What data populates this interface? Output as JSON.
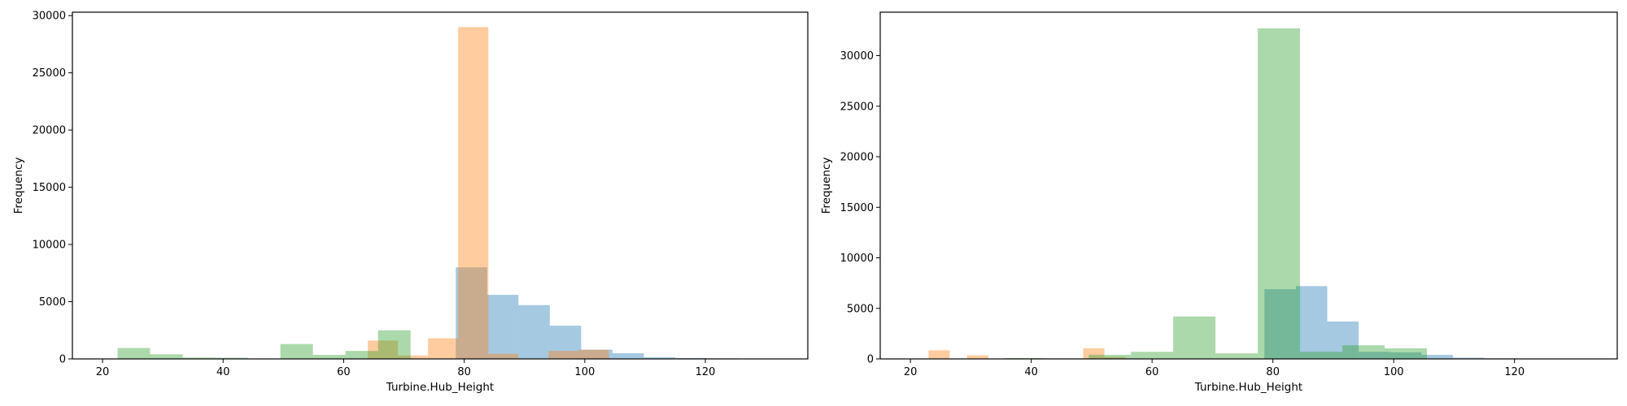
{
  "colors": {
    "series_a": "#1f77b4",
    "series_b": "#ff7f0e",
    "series_c": "#2ca02c",
    "alpha": 0.4
  },
  "chart_data": [
    {
      "type": "histogram",
      "xlabel": "Turbine.Hub_Height",
      "ylabel": "Frequency",
      "xlim": [
        15,
        137
      ],
      "ylim": [
        0,
        30300
      ],
      "xticks": [
        20,
        40,
        60,
        80,
        100,
        120
      ],
      "yticks": [
        0,
        5000,
        10000,
        15000,
        20000,
        25000,
        30000
      ],
      "series": [
        {
          "bins": [
            [
              78.6,
              83.8,
              8000
            ],
            [
              83.8,
              89.0,
              5600
            ],
            [
              89.0,
              94.2,
              4700
            ],
            [
              94.2,
              99.4,
              2900
            ],
            [
              99.4,
              104.6,
              800
            ],
            [
              104.6,
              109.8,
              500
            ],
            [
              109.8,
              115.0,
              150
            ],
            [
              115.0,
              120.2,
              80
            ],
            [
              120.2,
              125.4,
              50
            ],
            [
              125.4,
              130.6,
              30
            ]
          ]
        },
        {
          "bins": [
            [
              64.0,
              69.0,
              1600
            ],
            [
              69.0,
              74.0,
              300
            ],
            [
              74.0,
              79.0,
              1800
            ],
            [
              79.0,
              84.0,
              29000
            ],
            [
              84.0,
              89.0,
              450
            ],
            [
              94.0,
              99.0,
              700
            ],
            [
              99.0,
              104.0,
              800
            ]
          ]
        },
        {
          "bins": [
            [
              22.5,
              27.9,
              950
            ],
            [
              27.9,
              33.3,
              400
            ],
            [
              33.3,
              38.7,
              120
            ],
            [
              38.7,
              44.1,
              100
            ],
            [
              49.5,
              54.9,
              1300
            ],
            [
              54.9,
              60.3,
              350
            ],
            [
              60.3,
              65.7,
              700
            ],
            [
              65.7,
              71.1,
              2500
            ]
          ]
        }
      ]
    },
    {
      "type": "histogram",
      "xlabel": "Turbine.Hub_Height",
      "ylabel": "Frequency",
      "xlim": [
        15,
        137
      ],
      "ylim": [
        0,
        34300
      ],
      "xticks": [
        20,
        40,
        60,
        80,
        100,
        120
      ],
      "yticks": [
        0,
        5000,
        10000,
        15000,
        20000,
        25000,
        30000
      ],
      "series": [
        {
          "bins": [
            [
              78.6,
              83.8,
              6900
            ],
            [
              83.8,
              89.0,
              7200
            ],
            [
              89.0,
              94.2,
              3700
            ],
            [
              94.2,
              99.4,
              700
            ],
            [
              99.4,
              104.6,
              650
            ],
            [
              104.6,
              109.8,
              400
            ],
            [
              109.8,
              115.0,
              120
            ],
            [
              115.0,
              120.2,
              60
            ],
            [
              120.2,
              125.4,
              40
            ],
            [
              125.4,
              130.6,
              30
            ]
          ]
        },
        {
          "bins": [
            [
              23.0,
              26.5,
              850
            ],
            [
              29.4,
              32.9,
              350
            ],
            [
              48.6,
              52.1,
              1050
            ],
            [
              52.1,
              55.6,
              200
            ]
          ]
        },
        {
          "bins": [
            [
              35.5,
              42.5,
              80
            ],
            [
              42.5,
              49.5,
              60
            ],
            [
              49.5,
              56.5,
              400
            ],
            [
              56.5,
              63.5,
              700
            ],
            [
              63.5,
              70.5,
              4200
            ],
            [
              70.5,
              77.5,
              550
            ],
            [
              77.5,
              84.5,
              32700
            ],
            [
              84.5,
              91.5,
              700
            ],
            [
              91.5,
              98.5,
              1350
            ],
            [
              98.5,
              105.5,
              1050
            ]
          ]
        }
      ]
    }
  ]
}
